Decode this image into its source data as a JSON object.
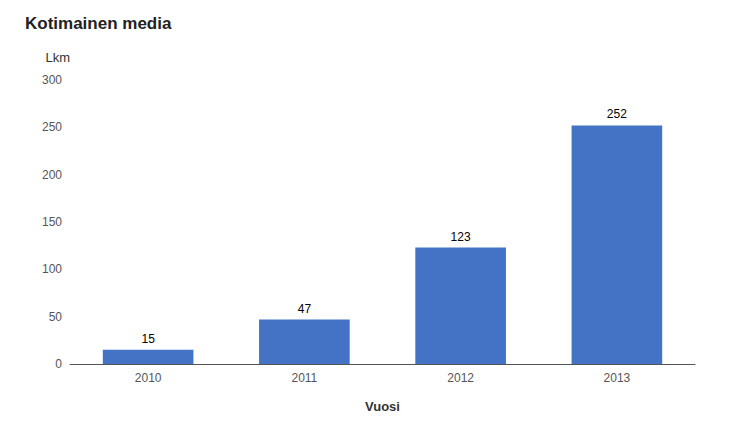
{
  "chart_data": {
    "type": "bar",
    "title": "Kotimainen media",
    "xlabel": "Vuosi",
    "ylabel": "Lkm",
    "categories": [
      "2010",
      "2011",
      "2012",
      "2013"
    ],
    "values": [
      15,
      47,
      123,
      252
    ],
    "color": "#4472C4",
    "ylim": [
      0,
      300
    ],
    "yticks": [
      0,
      50,
      100,
      150,
      200,
      250,
      300
    ],
    "grid": false,
    "data_labels": true
  }
}
